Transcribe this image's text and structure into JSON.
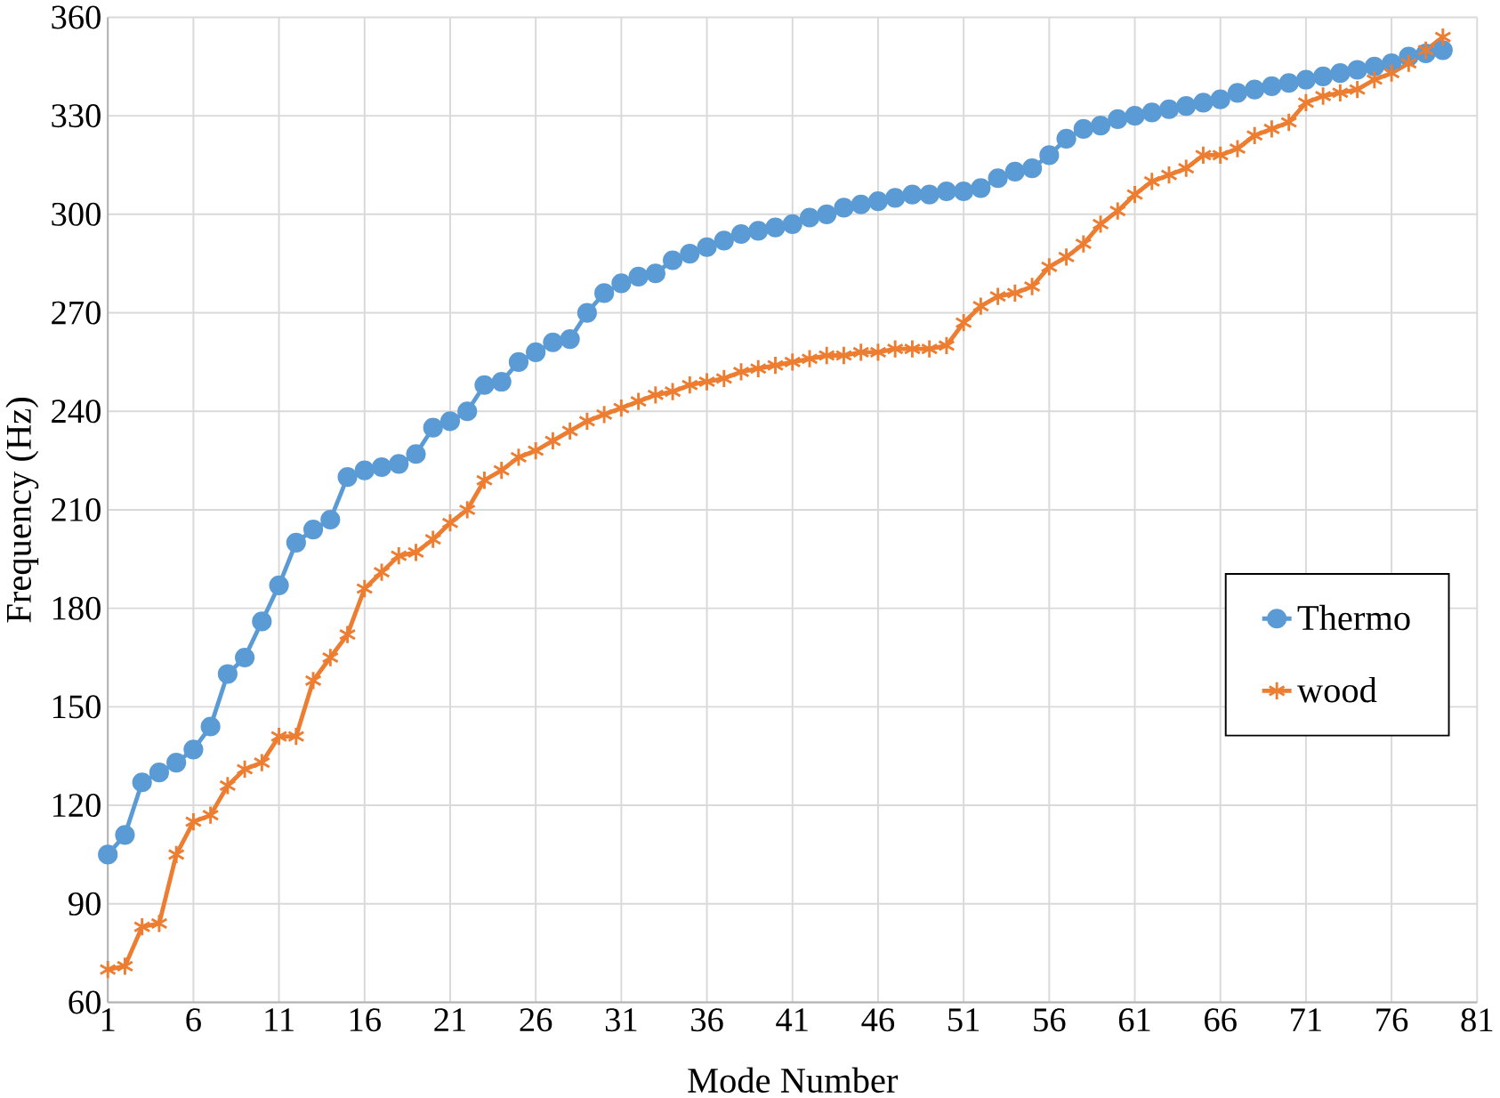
{
  "chart_data": {
    "type": "line",
    "xlabel": "Mode Number",
    "ylabel": "Frequency (Hz)",
    "x": [
      1,
      2,
      3,
      4,
      5,
      6,
      7,
      8,
      9,
      10,
      11,
      12,
      13,
      14,
      15,
      16,
      17,
      18,
      19,
      20,
      21,
      22,
      23,
      24,
      25,
      26,
      27,
      28,
      29,
      30,
      31,
      32,
      33,
      34,
      35,
      36,
      37,
      38,
      39,
      40,
      41,
      42,
      43,
      44,
      45,
      46,
      47,
      48,
      49,
      50,
      51,
      52,
      53,
      54,
      55,
      56,
      57,
      58,
      59,
      60,
      61,
      62,
      63,
      64,
      65,
      66,
      67,
      68,
      69,
      70,
      71,
      72,
      73,
      74,
      75,
      76,
      77,
      78,
      79
    ],
    "series": [
      {
        "name": "Thermo",
        "color": "#5b9bd5",
        "marker": "circle",
        "values": [
          105,
          111,
          127,
          130,
          133,
          137,
          144,
          160,
          165,
          176,
          187,
          200,
          204,
          207,
          220,
          222,
          223,
          224,
          227,
          235,
          237,
          240,
          248,
          249,
          255,
          258,
          261,
          262,
          270,
          276,
          279,
          281,
          282,
          286,
          288,
          290,
          292,
          294,
          295,
          296,
          297,
          299,
          300,
          302,
          303,
          304,
          305,
          306,
          306,
          307,
          307,
          308,
          311,
          313,
          314,
          318,
          323,
          326,
          327,
          329,
          330,
          331,
          332,
          333,
          334,
          335,
          337,
          338,
          339,
          340,
          341,
          342,
          343,
          344,
          345,
          346,
          348,
          349,
          350
        ]
      },
      {
        "name": "wood",
        "color": "#ed7d31",
        "marker": "cross",
        "values": [
          70,
          71,
          83,
          84,
          105,
          115,
          117,
          126,
          131,
          133,
          141,
          141,
          158,
          165,
          172,
          186,
          191,
          196,
          197,
          201,
          206,
          210,
          219,
          222,
          226,
          228,
          231,
          234,
          237,
          239,
          241,
          243,
          245,
          246,
          248,
          249,
          250,
          252,
          253,
          254,
          255,
          256,
          257,
          257,
          258,
          258,
          259,
          259,
          259,
          260,
          267,
          272,
          275,
          276,
          278,
          284,
          287,
          291,
          297,
          301,
          306,
          310,
          312,
          314,
          318,
          318,
          320,
          324,
          326,
          328,
          334,
          336,
          337,
          338,
          341,
          343,
          346,
          350,
          354
        ]
      }
    ],
    "xlim": [
      1,
      81
    ],
    "xticks": [
      1,
      6,
      11,
      16,
      21,
      26,
      31,
      36,
      41,
      46,
      51,
      56,
      61,
      66,
      71,
      76,
      81
    ],
    "ylim": [
      60,
      360
    ],
    "yticks": [
      60,
      90,
      120,
      150,
      180,
      210,
      240,
      270,
      300,
      330,
      360
    ],
    "grid": true,
    "legend": "right",
    "line_style": "solid"
  }
}
